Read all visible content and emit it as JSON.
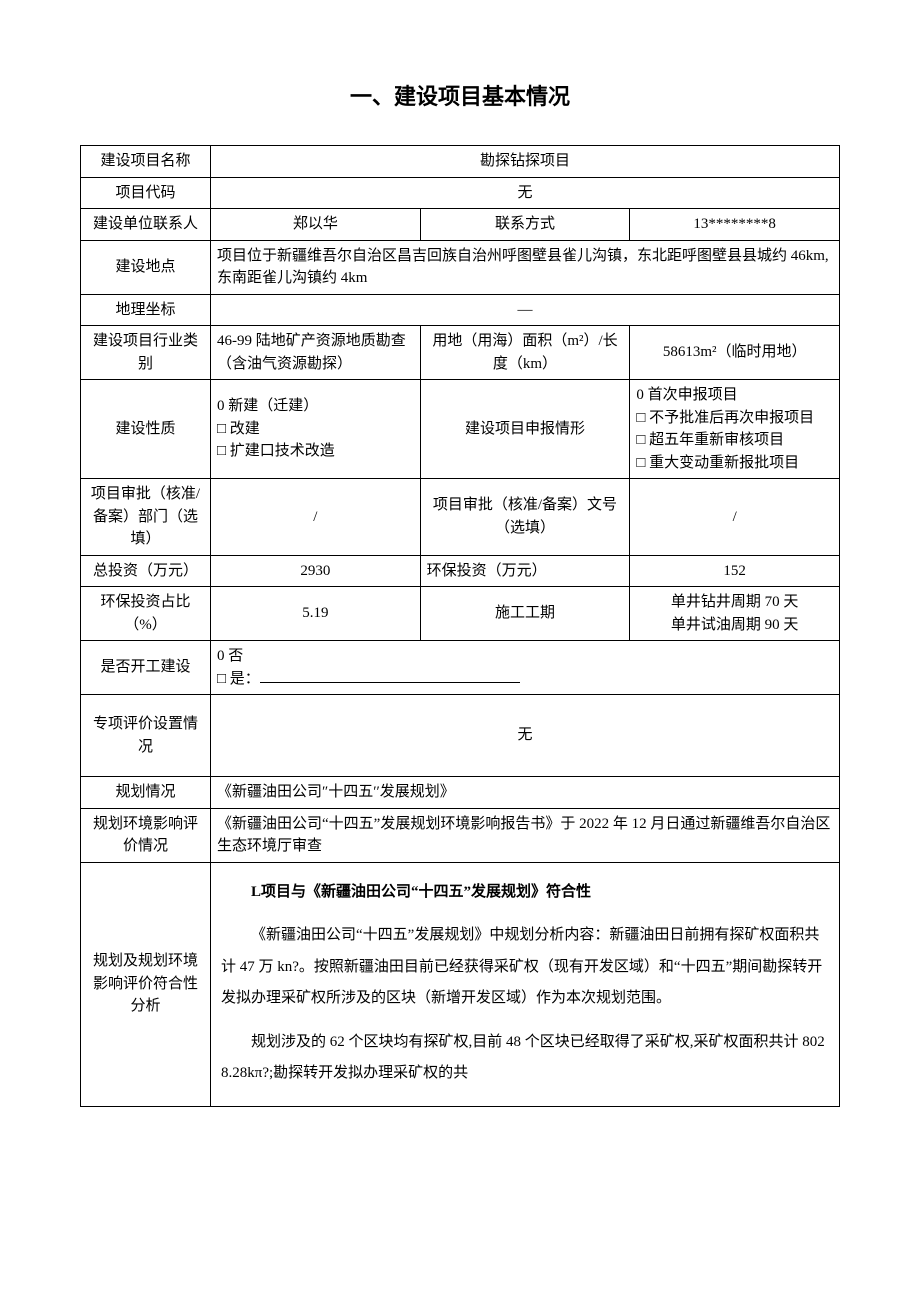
{
  "title": "一、建设项目基本情况",
  "rows": {
    "projName": {
      "label": "建设项目名称",
      "value": "勘探钻探项目"
    },
    "projCode": {
      "label": "项目代码",
      "value": "无"
    },
    "contact": {
      "label": "建设单位联系人",
      "name": "郑以华",
      "phoneLabel": "联系方式",
      "phone": "13********8"
    },
    "location": {
      "label": "建设地点",
      "value": "项目位于新疆维吾尔自治区昌吉回族自治州呼图壁县雀儿沟镇，东北距呼图壁县县城约 46km,东南距雀儿沟镇约 4km"
    },
    "coord": {
      "label": "地理坐标",
      "value": "—"
    },
    "industry": {
      "label": "建设项目行业类别",
      "value": "46-99 陆地矿产资源地质勘查（含油气资源勘探）",
      "areaLabel": "用地（用海）面积（m²）/长度（km）",
      "areaValue": "58613m²（临时用地）"
    },
    "nature": {
      "label": "建设性质",
      "opts": [
        "0 新建（迁建）",
        "□ 改建",
        "□ 扩建口技术改造"
      ],
      "filingLabel": "建设项目申报情形",
      "filingOpts": [
        "0 首次申报项目",
        "□ 不予批准后再次申报项目",
        "□ 超五年重新审核项目",
        "□ 重大变动重新报批项目"
      ]
    },
    "approval": {
      "deptLabel": "项目审批（核准/备案）部门（选填）",
      "deptValue": "/",
      "noLabel": "项目审批（核准/备案）文号（选填）",
      "noValue": "/"
    },
    "invest": {
      "totalLabel": "总投资（万元）",
      "total": "2930",
      "envLabel": "环保投资（万元）",
      "env": "152"
    },
    "envRatio": {
      "label": "环保投资占比（%）",
      "value": "5.19",
      "periodLabel": "施工工期",
      "periodValue": "单井钻井周期 70 天\n单井试油周期 90 天"
    },
    "started": {
      "label": "是否开工建设",
      "no": "0 否",
      "yes": "□ 是："
    },
    "special": {
      "label": "专项评价设置情况",
      "value": "无"
    },
    "plan": {
      "label": "规划情况",
      "value": "《新疆油田公司″十四五′′发展规划》"
    },
    "planEIA": {
      "label": "规划环境影响评价情况",
      "value": "《新疆油田公司“十四五”发展规划环境影响报告书》于 2022 年 12 月日通过新疆维吾尔自治区生态环境厅审查"
    },
    "conform": {
      "label": "规划及规划环境影响评价符合性分析",
      "heading": "L项目与《新疆油田公司“十四五”发展规划》符合性",
      "paras": [
        "《新疆油田公司“十四五”发展规划》中规划分析内容：新疆油田日前拥有探矿权面积共计 47 万 kn?。按照新疆油田目前已经获得采矿权（现有开发区域）和“十四五”期间勘探转开发拟办理采矿权所涉及的区块（新增开发区域）作为本次规划范围。",
        "规划涉及的 62 个区块均有探矿权,目前 48 个区块已经取得了采矿权,采矿权面积共计 8028.28kπ?;勘探转开发拟办理采矿权的共"
      ]
    }
  }
}
